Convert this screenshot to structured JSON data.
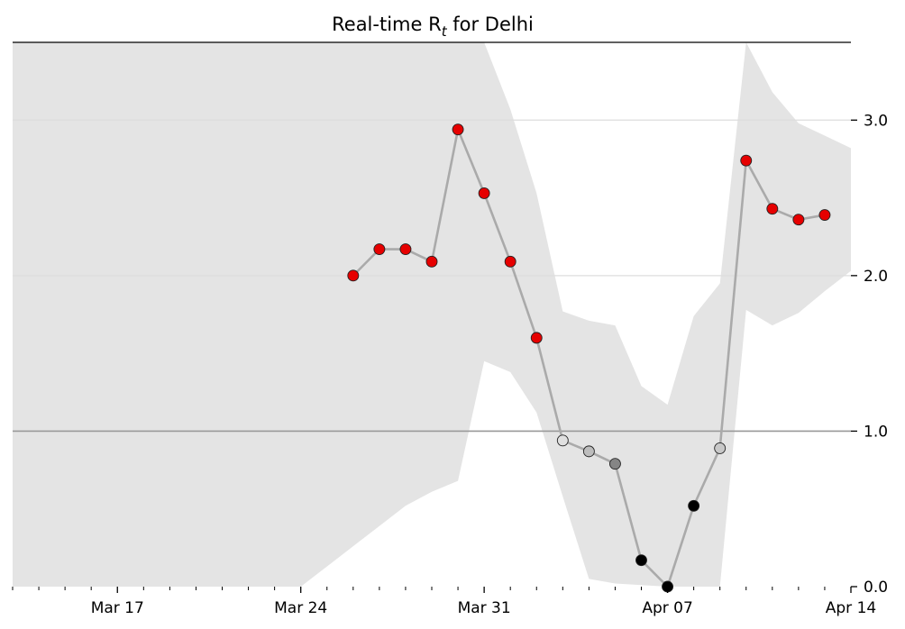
{
  "chart_data": {
    "type": "line",
    "title": "Real-time R",
    "title_subscript": "t",
    "title_suffix": " for Delhi",
    "xlabel": "",
    "ylabel": "",
    "x_start": "2020-03-13",
    "x_end": "2020-04-14",
    "xlim": [
      "Mar 13",
      "Apr 14"
    ],
    "ylim": [
      0.0,
      3.5
    ],
    "x_ticks": [
      "Mar 17",
      "Mar 24",
      "Mar 31",
      "Apr 07",
      "Apr 14"
    ],
    "y_ticks": [
      "0.0",
      "1.0",
      "2.0",
      "3.0"
    ],
    "grid": true,
    "reference_line": 1.0,
    "colors": {
      "line": "#aaaaaa",
      "band": "#e4e4e4",
      "high": "#e60000",
      "reference": "#999999",
      "grid": "#dddddd"
    },
    "band": {
      "dates": [
        "Mar 13",
        "Mar 24",
        "Mar 25",
        "Mar 26",
        "Mar 27",
        "Mar 28",
        "Mar 29",
        "Mar 30",
        "Mar 31",
        "Apr 01",
        "Apr 02",
        "Apr 03",
        "Apr 04",
        "Apr 05",
        "Apr 06",
        "Apr 07",
        "Apr 08",
        "Apr 09",
        "Apr 10",
        "Apr 11",
        "Apr 12",
        "Apr 13",
        "Apr 14"
      ],
      "upper": [
        3.5,
        3.5,
        3.5,
        3.5,
        3.5,
        3.5,
        3.5,
        3.5,
        3.5,
        3.07,
        2.53,
        1.77,
        1.71,
        1.68,
        1.29,
        1.17,
        1.74,
        1.95,
        3.5,
        3.18,
        2.98,
        2.9,
        2.82
      ],
      "lower": [
        0.0,
        0.0,
        0.13,
        0.26,
        0.39,
        0.52,
        0.61,
        0.68,
        1.45,
        1.38,
        1.12,
        0.58,
        0.05,
        0.02,
        0.01,
        0.0,
        0.0,
        0.0,
        1.78,
        1.68,
        1.76,
        1.9,
        2.03
      ]
    },
    "series": [
      {
        "dates": [
          "Mar 26",
          "Mar 27",
          "Mar 28",
          "Mar 29",
          "Mar 30",
          "Mar 31",
          "Apr 01",
          "Apr 02",
          "Apr 03",
          "Apr 04",
          "Apr 05",
          "Apr 06",
          "Apr 07",
          "Apr 08",
          "Apr 09",
          "Apr 10",
          "Apr 11",
          "Apr 12",
          "Apr 13"
        ],
        "values": [
          2.0,
          2.17,
          2.17,
          2.09,
          2.94,
          2.53,
          2.09,
          1.6,
          0.94,
          0.87,
          0.79,
          0.17,
          0.0,
          0.52,
          0.89,
          2.74,
          2.43,
          2.36,
          2.39
        ],
        "point_colors": [
          "#e60000",
          "#e60000",
          "#e60000",
          "#e60000",
          "#e60000",
          "#e60000",
          "#e60000",
          "#e60000",
          "#e0e0e0",
          "#bdbdbd",
          "#858585",
          "#000000",
          "#000000",
          "#000000",
          "#c8c8c8",
          "#e60000",
          "#e60000",
          "#e60000",
          "#e60000"
        ]
      }
    ]
  }
}
